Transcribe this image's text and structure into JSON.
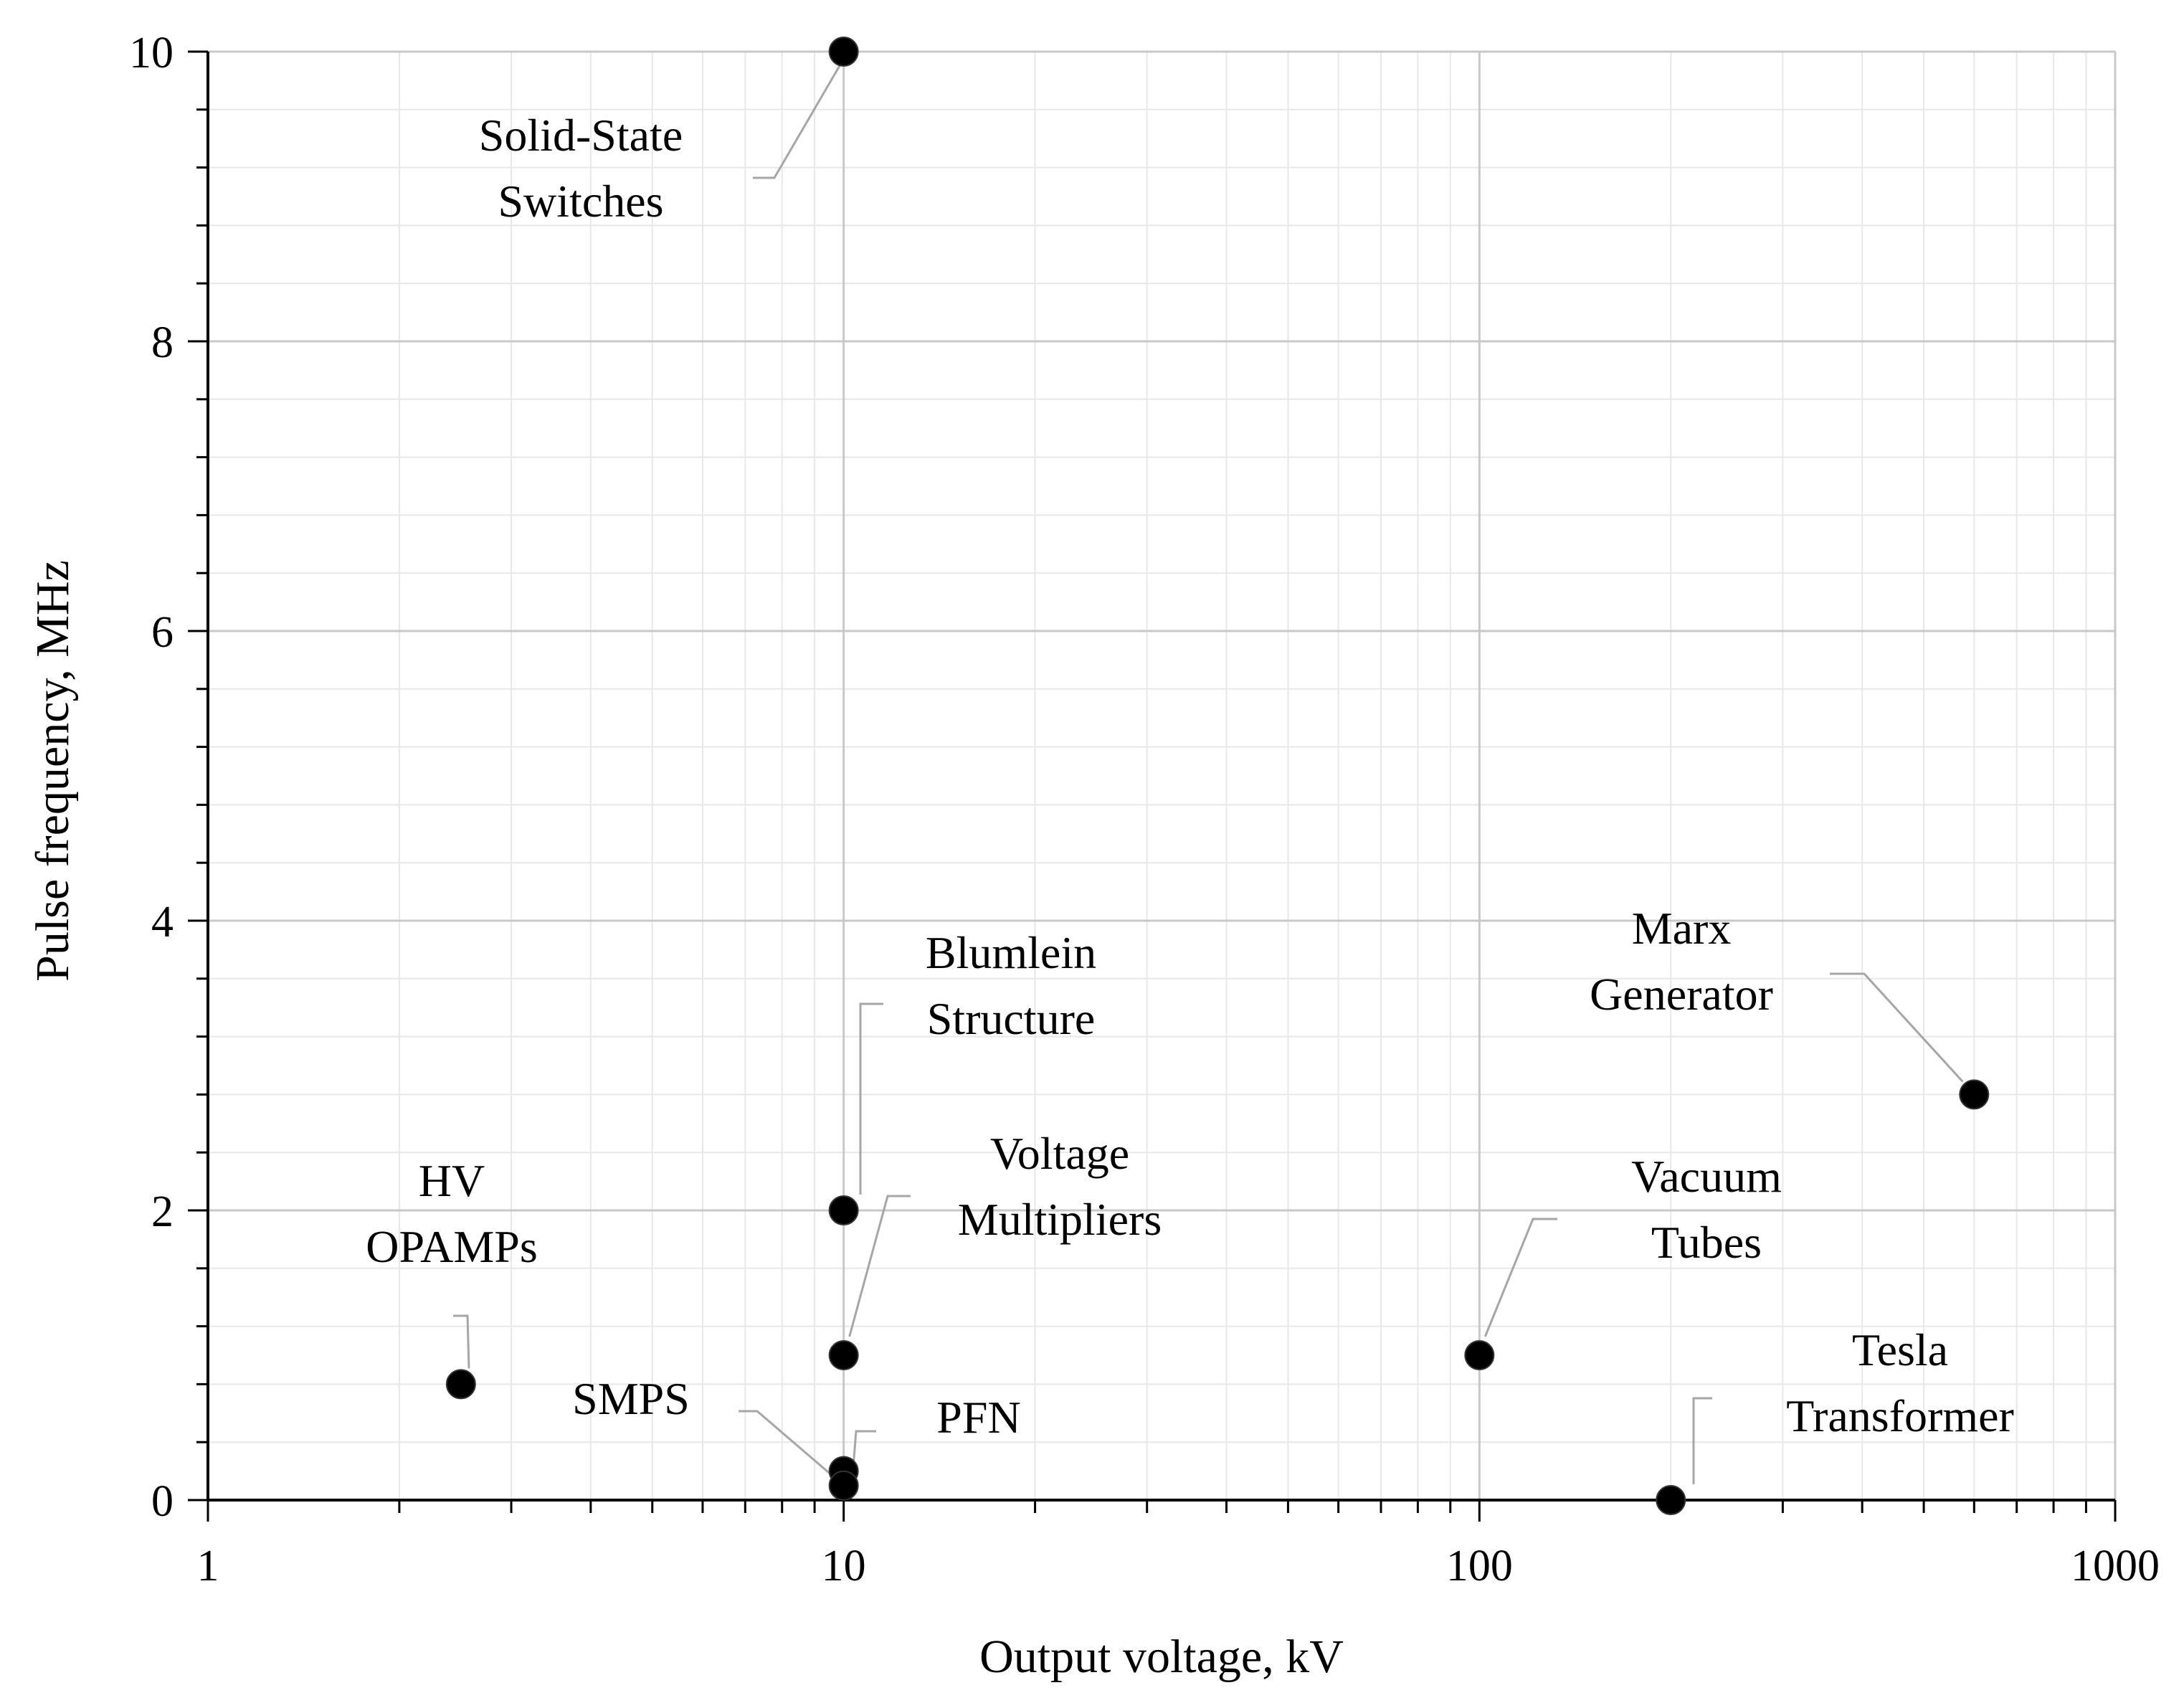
{
  "chart_data": {
    "type": "scatter",
    "title": "",
    "xlabel": "Output voltage, kV",
    "ylabel": "Pulse frequency, MHz",
    "x_scale": "log",
    "xlim": [
      1,
      1000
    ],
    "ylim": [
      0,
      10
    ],
    "x_ticks": [
      1,
      10,
      100,
      1000
    ],
    "x_tick_labels": [
      "1",
      "10",
      "100",
      "1000"
    ],
    "y_ticks": [
      0,
      2,
      4,
      6,
      8,
      10
    ],
    "y_tick_labels": [
      "0",
      "2",
      "4",
      "6",
      "8",
      "10"
    ],
    "grid": true,
    "legend": "none",
    "marker_color": "#000000",
    "points": [
      {
        "label": [
          "Solid-State",
          "Switches"
        ],
        "x": 10,
        "y": 10
      },
      {
        "label": [
          "Blumlein",
          "Structure"
        ],
        "x": 10,
        "y": 2
      },
      {
        "label": [
          "Voltage",
          "Multipliers"
        ],
        "x": 10,
        "y": 1
      },
      {
        "label": [
          "PFN"
        ],
        "x": 10,
        "y": 0.2
      },
      {
        "label": [
          "SMPS"
        ],
        "x": 10,
        "y": 0.1
      },
      {
        "label": [
          "HV",
          "OPAMPs"
        ],
        "x": 2.5,
        "y": 0.8
      },
      {
        "label": [
          "Marx",
          "Generator"
        ],
        "x": 600,
        "y": 2.8
      },
      {
        "label": [
          "Vacuum",
          "Tubes"
        ],
        "x": 100,
        "y": 1
      },
      {
        "label": [
          "Tesla",
          "Transformer"
        ],
        "x": 200,
        "y": 0
      }
    ]
  }
}
